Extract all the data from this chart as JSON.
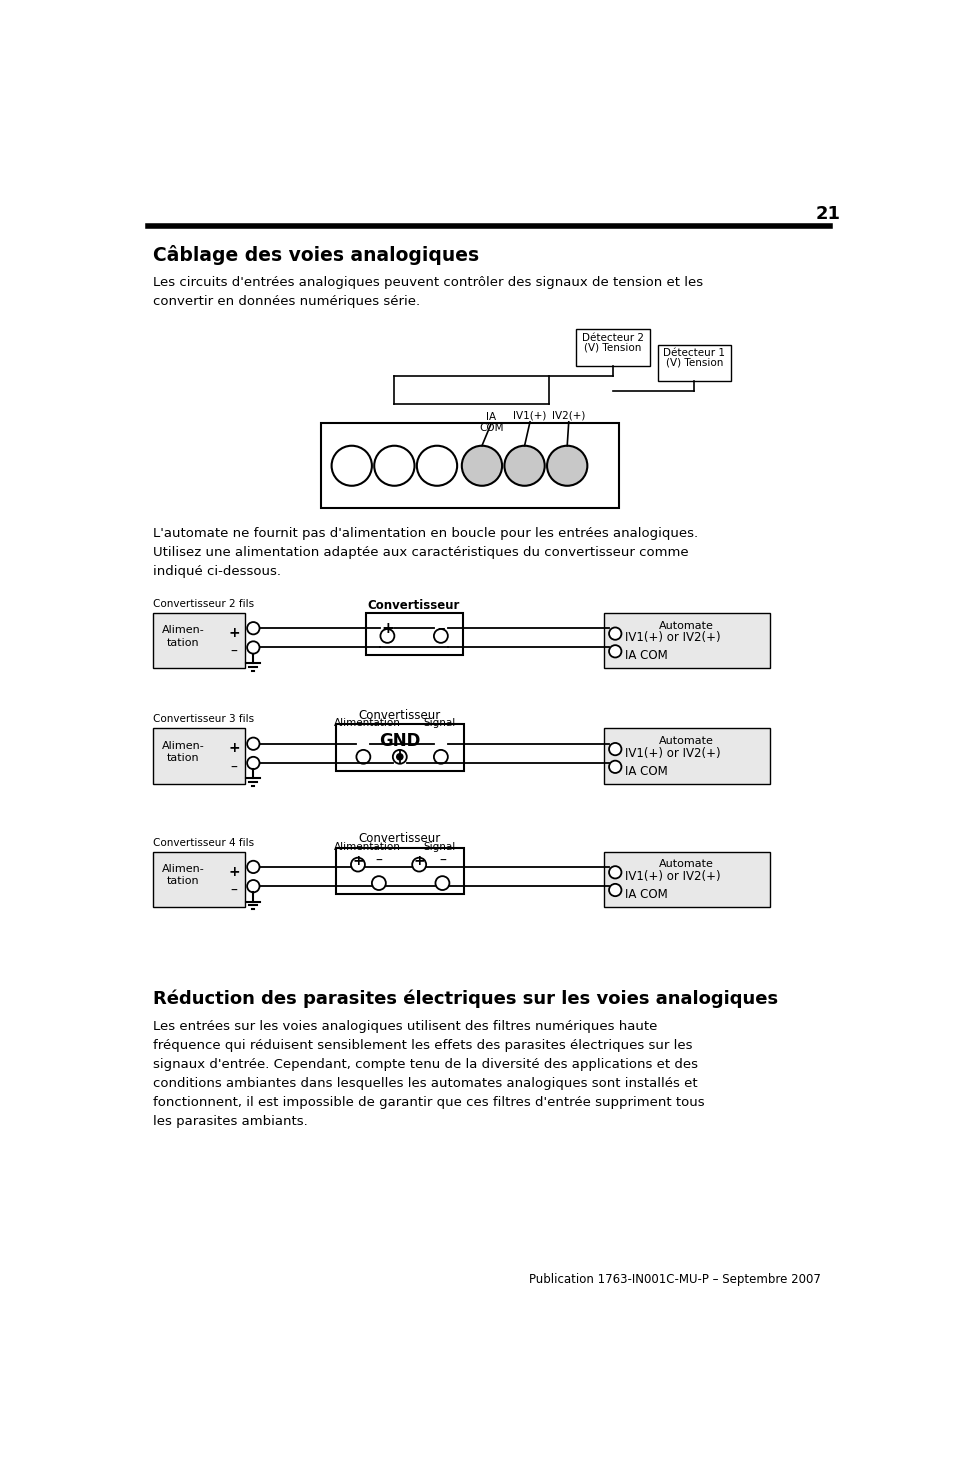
{
  "page_number": "21",
  "title1": "Câblage des voies analogiques",
  "para1": "Les circuits d'entrées analogiques peuvent contrôler des signaux de tension et les\nconvertir en données numériques série.",
  "para2": "L'automate ne fournit pas d'alimentation en boucle pour les entrées analogiques.\nUtilisez une alimentation adaptée aux caractéristiques du convertisseur comme\nindiqué ci-dessous.",
  "title2": "Réduction des parasites électriques sur les voies analogiques",
  "para3": "Les entrées sur les voies analogiques utilisent des filtres numériques haute\nfréquence qui réduisent sensiblement les effets des parasites électriques sur les\nsignaux d'entrée. Cependant, compte tenu de la diversité des applications et des\nconditions ambiantes dans lesquelles les automates analogiques sont installés et\nfonctionnent, il est impossible de garantir que ces filtres d'entrée suppriment tous\nles parasites ambiants.",
  "footer": "Publication 1763-IN001C-MU-P – Septembre 2007",
  "bg_color": "#ffffff",
  "text_color": "#000000"
}
